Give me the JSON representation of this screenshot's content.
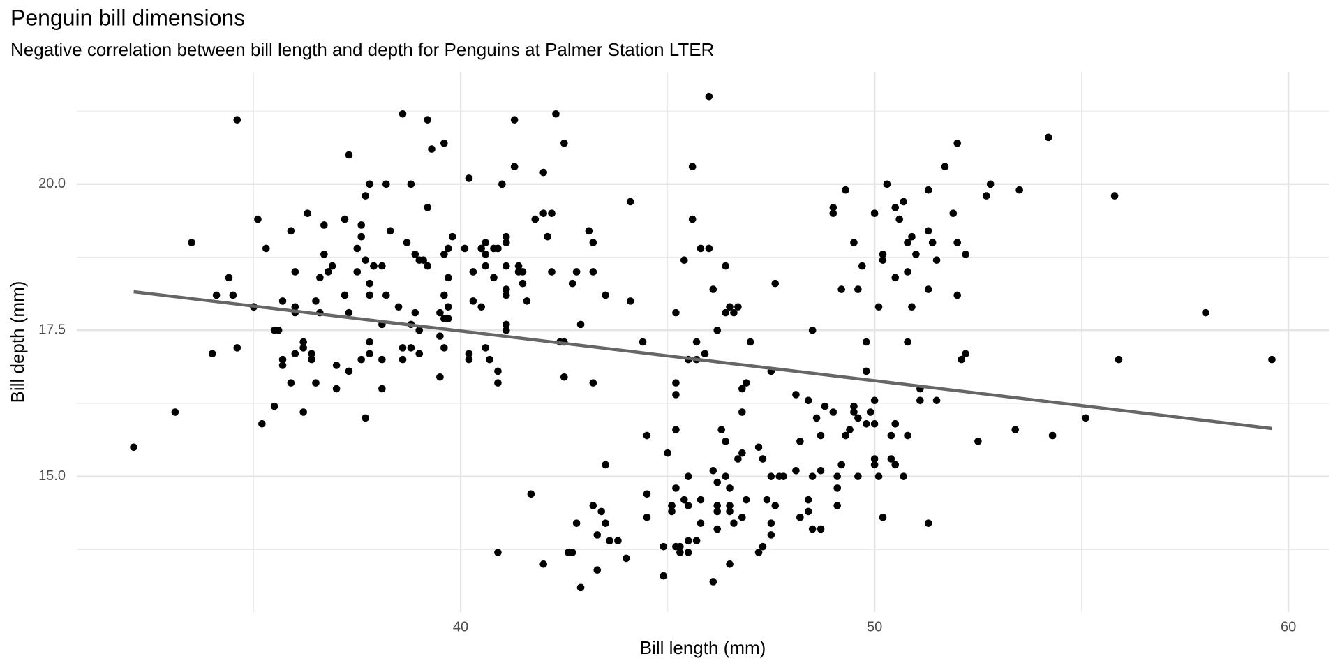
{
  "chart_data": {
    "type": "scatter",
    "title": "Penguin bill dimensions",
    "subtitle": "Negative correlation between bill length and depth for Penguins at Palmer Station LTER",
    "x_label": "Bill length (mm)",
    "y_label": "Bill depth (mm)",
    "color": "#000000",
    "grid": true,
    "xlim": [
      30.725,
      60.975
    ],
    "ylim": [
      12.68,
      21.92
    ],
    "xticks": [
      40,
      50,
      60
    ],
    "yticks": [
      {
        "value": 15,
        "label": "15.0"
      },
      17.5,
      {
        "value": 20,
        "label": "20.0"
      }
    ],
    "xminor": [
      35,
      45,
      55
    ],
    "yminor": [
      13.75,
      16.25,
      18.75,
      21.25
    ],
    "x": [
      39.1,
      39.5,
      40.3,
      36.7,
      39.3,
      38.9,
      39.2,
      34.1,
      42,
      37.8,
      37.8,
      41.1,
      38.6,
      34.6,
      36.6,
      38.7,
      42.5,
      34.4,
      46,
      37.8,
      37.7,
      35.9,
      38.2,
      38.8,
      35.3,
      40.6,
      40.5,
      37.9,
      40.5,
      39.5,
      37.2,
      39.5,
      40.9,
      36.4,
      39.2,
      38.8,
      42.2,
      37.6,
      39.8,
      36.5,
      40.8,
      36,
      44.1,
      37,
      39.6,
      41.1,
      37.5,
      36,
      42.3,
      39.6,
      40.1,
      35,
      42,
      34.5,
      41.4,
      39,
      40.6,
      36.5,
      37.6,
      35.7,
      41.3,
      37.6,
      41.1,
      36.4,
      41.6,
      35.5,
      41.1,
      35.9,
      41.8,
      33.5,
      39.7,
      39.6,
      45.8,
      35.5,
      42.8,
      40.9,
      37.2,
      36.2,
      42.1,
      34.6,
      42.9,
      36.7,
      35.1,
      37.3,
      41.3,
      36.3,
      36.9,
      38.3,
      38.9,
      35.7,
      41.1,
      34,
      39.6,
      36.2,
      40.8,
      38.1,
      40.3,
      33.1,
      43.2,
      35,
      41,
      37.7,
      37.8,
      37.9,
      39.7,
      38.6,
      38.2,
      38.1,
      43.2,
      38.1,
      45.6,
      39.7,
      42.2,
      39.6,
      42.7,
      38.6,
      37.3,
      35.7,
      41.1,
      36.2,
      37.7,
      40.2,
      41.4,
      35.2,
      40.6,
      38.8,
      41.5,
      39,
      44.1,
      38.5,
      43.1,
      36.8,
      37.5,
      38.1,
      41.1,
      35.6,
      40.2,
      37,
      39.7,
      40.2,
      40.6,
      32.1,
      40.7,
      37.3,
      39,
      39.2,
      36.6,
      36,
      37.8,
      36,
      41.5,
      46.1,
      50,
      48.7,
      50,
      47.6,
      46.5,
      45.4,
      46.7,
      43.3,
      46.8,
      40.9,
      49,
      45.5,
      48.4,
      45.8,
      49.3,
      42,
      49.2,
      46.2,
      48.7,
      50.2,
      45.1,
      46.5,
      46.3,
      42.9,
      46.1,
      44.5,
      47.8,
      48.2,
      50,
      47.3,
      42.8,
      45.1,
      59.6,
      49.1,
      48.4,
      42.6,
      44.4,
      44,
      48.7,
      42.7,
      49.6,
      45.3,
      49.6,
      50.5,
      43.6,
      45.5,
      50.5,
      44.9,
      45.2,
      46.6,
      48.5,
      45.1,
      50.1,
      46.5,
      45,
      43.8,
      45.5,
      43.2,
      50.4,
      45.3,
      46.2,
      45.7,
      54.3,
      45.8,
      49.8,
      46.2,
      49.5,
      43.5,
      50.7,
      47.7,
      46.4,
      48.2,
      46.5,
      46.4,
      48.6,
      47.5,
      51.1,
      45.2,
      45.2,
      49.1,
      52.5,
      47.4,
      50,
      44.9,
      50.8,
      43.4,
      51.3,
      47.5,
      52.1,
      47.5,
      52.2,
      45.5,
      49.5,
      44.5,
      50.8,
      49.4,
      46.9,
      48.4,
      51.1,
      48.5,
      55.9,
      47.2,
      49.1,
      47.3,
      46.8,
      41.7,
      53.4,
      43.3,
      48.1,
      50.5,
      49.8,
      43.5,
      51.5,
      46.2,
      55.1,
      44.5,
      48.8,
      47.2,
      46.8,
      50.4,
      45.2,
      49.9,
      46.5,
      50,
      51.3,
      45.4,
      52.7,
      45.2,
      46.1,
      51.3,
      46,
      51.3,
      46.6,
      51.7,
      47,
      52,
      45.9,
      50.5,
      50.3,
      58,
      46.4,
      49.2,
      42.4,
      48.5,
      43.2,
      50.6,
      46.7,
      52,
      50.5,
      49.5,
      46.4,
      52.8,
      40.9,
      54.2,
      42.5,
      51,
      49.7,
      47.5,
      47.6,
      52,
      46.9,
      53.5,
      49,
      46.2,
      50.9,
      45.5,
      50.9,
      50.8,
      50.1,
      49,
      51.5,
      49.8,
      48.1,
      51.4,
      45.7,
      50.7,
      42.5,
      52.2,
      45.2,
      49.3,
      50.2,
      45.6,
      51.9,
      46.8,
      45.7,
      55.8,
      43.5,
      49.6,
      50.8,
      50.2
    ],
    "values": [
      18.7,
      17.4,
      18,
      19.3,
      20.6,
      17.8,
      19.6,
      18.1,
      20.2,
      17.1,
      17.3,
      17.6,
      21.2,
      21.1,
      17.8,
      19,
      20.7,
      18.4,
      21.5,
      18.3,
      18.7,
      19.2,
      18.1,
      17.2,
      18.9,
      18.6,
      17.9,
      18.6,
      18.9,
      16.7,
      18.1,
      17.8,
      18.9,
      17,
      21.1,
      20,
      18.5,
      19.3,
      19.1,
      18,
      18.4,
      18.5,
      19.7,
      16.9,
      18.8,
      19,
      18.9,
      17.9,
      21.2,
      17.7,
      18.9,
      17.9,
      19.5,
      18.1,
      18.6,
      17.5,
      18.8,
      16.6,
      19.1,
      16.9,
      21.1,
      17,
      18.2,
      17.1,
      18,
      16.2,
      19.1,
      16.6,
      19.4,
      19,
      18.4,
      17.2,
      18.9,
      17.5,
      18.5,
      16.8,
      19.4,
      16.1,
      19.1,
      17.2,
      17.6,
      18.8,
      19.4,
      17.8,
      20.3,
      19.5,
      18.6,
      19.2,
      18.8,
      18,
      18.1,
      17.1,
      18.1,
      17.3,
      18.9,
      18.6,
      18.5,
      16.1,
      18.5,
      17.9,
      20,
      16,
      20,
      18.6,
      18.9,
      17.2,
      20,
      17,
      19,
      16.5,
      20.3,
      17.7,
      19.5,
      20.7,
      18.3,
      17,
      20.5,
      17,
      18.6,
      17.2,
      19.8,
      17,
      18.5,
      15.9,
      19,
      17.6,
      18.3,
      17.1,
      18,
      17.9,
      19.2,
      18.5,
      18.5,
      17.6,
      17.5,
      17.5,
      20.1,
      16.5,
      17.9,
      17.1,
      17.2,
      15.5,
      17,
      16.8,
      18.7,
      18.6,
      18.4,
      17.8,
      18.1,
      17.1,
      18.5,
      13.2,
      16.3,
      14.1,
      15.2,
      14.5,
      13.5,
      14.6,
      15.3,
      13.4,
      15.4,
      13.7,
      16.1,
      13.7,
      14.6,
      14.6,
      15.7,
      13.5,
      15.2,
      14.5,
      15.1,
      14.3,
      14.5,
      14.5,
      15.8,
      13.1,
      15.1,
      14.3,
      15,
      14.3,
      15.3,
      15.3,
      14.2,
      14.5,
      17,
      14.8,
      16.3,
      13.7,
      17.3,
      13.6,
      15.7,
      13.7,
      16,
      13.7,
      15,
      15.9,
      13.9,
      13.9,
      15.9,
      13.3,
      15.8,
      14.2,
      14.1,
      14.4,
      15,
      14.4,
      15.4,
      13.9,
      15,
      14.5,
      15.3,
      13.8,
      14.9,
      13.9,
      15.7,
      14.2,
      16.8,
      14.4,
      16.2,
      14.2,
      15,
      15,
      15.6,
      15.6,
      14.8,
      15,
      16,
      14.2,
      16.3,
      13.8,
      16.4,
      14.5,
      15.6,
      14.6,
      15.9,
      13.8,
      17.3,
      14.4,
      14.2,
      14,
      17,
      15,
      17.1,
      14.5,
      16.1,
      14.7,
      15.7,
      15.8,
      14.6,
      14.4,
      16.5,
      15,
      17,
      15.5,
      15,
      13.8,
      16.1,
      14.7,
      15.8,
      14,
      15.1,
      15.2,
      15.9,
      15.2,
      16.3,
      14.1,
      16,
      15.7,
      16.2,
      13.7,
      14.3,
      15.7,
      14.8,
      16.1,
      17.9,
      19.5,
      19.2,
      18.7,
      19.8,
      17.8,
      18.2,
      18.2,
      18.9,
      19.9,
      17.8,
      20.3,
      17.3,
      18.1,
      17.1,
      19.6,
      20,
      17.8,
      18.6,
      18.2,
      17.3,
      17.5,
      16.6,
      19.4,
      17.9,
      19,
      18.4,
      19,
      17.8,
      20,
      16.6,
      20.8,
      16.7,
      18.8,
      18.6,
      16.8,
      18.3,
      20.7,
      16.6,
      19.9,
      19.5,
      17.5,
      19.1,
      17,
      17.9,
      18.5,
      17.9,
      19.6,
      18.7,
      17.3,
      16.4,
      19,
      17.3,
      19.7,
      17.3,
      18.8,
      16.6,
      19.9,
      18.8,
      19.4,
      19.5,
      16.5,
      17,
      19.8,
      18.1,
      18.2,
      19,
      18.7
    ],
    "trend_line": {
      "x": [
        32.1,
        59.6
      ],
      "values": [
        18.16,
        15.82
      ],
      "color": "#666666"
    }
  }
}
